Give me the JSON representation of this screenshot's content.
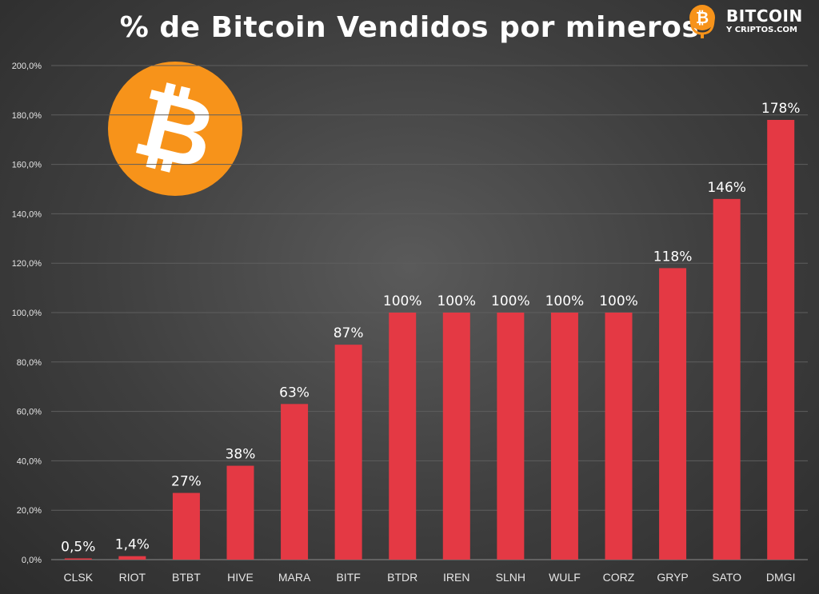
{
  "brand": {
    "line1": "BITCOIN",
    "line2": "Y CRIPTOS.COM",
    "icon": "microphone-bitcoin-icon",
    "color": "#f7931a"
  },
  "decor": {
    "icon": "bitcoin-logo-icon",
    "color": "#f7931a",
    "glyph": "₿"
  },
  "colors": {
    "bar": "#e43944",
    "grid": "#5e5e5e",
    "text": "#ffffff",
    "axis_text": "#e6e6e6"
  },
  "chart_data": {
    "type": "bar",
    "title": "% de Bitcoin Vendidos por mineros",
    "xlabel": "",
    "ylabel": "",
    "categories": [
      "CLSK",
      "RIOT",
      "BTBT",
      "HIVE",
      "MARA",
      "BITF",
      "BTDR",
      "IREN",
      "SLNH",
      "WULF",
      "CORZ",
      "GRYP",
      "SATO",
      "DMGI"
    ],
    "values": [
      0.5,
      1.4,
      27,
      38,
      63,
      87,
      100,
      100,
      100,
      100,
      100,
      118,
      146,
      178
    ],
    "data_labels": [
      "0,5%",
      "1,4%",
      "27%",
      "38%",
      "63%",
      "87%",
      "100%",
      "100%",
      "100%",
      "100%",
      "100%",
      "118%",
      "146%",
      "178%"
    ],
    "ylim": [
      0,
      200
    ],
    "yticks": [
      0,
      20,
      40,
      60,
      80,
      100,
      120,
      140,
      160,
      180,
      200
    ],
    "ytick_labels": [
      "0,0%",
      "20,0%",
      "40,0%",
      "60,0%",
      "80,0%",
      "100,0%",
      "120,0%",
      "140,0%",
      "160,0%",
      "180,0%",
      "200,0%"
    ],
    "grid": true,
    "legend": "none"
  }
}
